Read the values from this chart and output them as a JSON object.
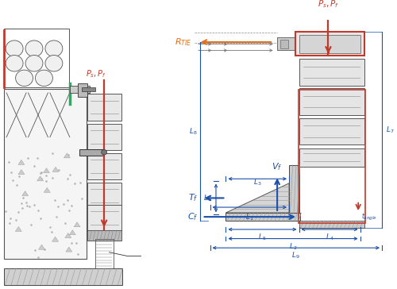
{
  "bg_color": "#ffffff",
  "colors": {
    "red": "#c0392b",
    "orange": "#e07020",
    "blue": "#1a4faa",
    "dark": "#333333",
    "gray": "#888888",
    "light_gray": "#d8d8d8",
    "mid_gray": "#aaaaaa",
    "green": "#27ae60",
    "panel_fill": "#e0e0e0",
    "hatch_fill": "#cccccc"
  },
  "figsize": [
    5.0,
    3.64
  ],
  "dpi": 100,
  "xlim": [
    0,
    10
  ],
  "ylim": [
    0,
    7.28
  ]
}
